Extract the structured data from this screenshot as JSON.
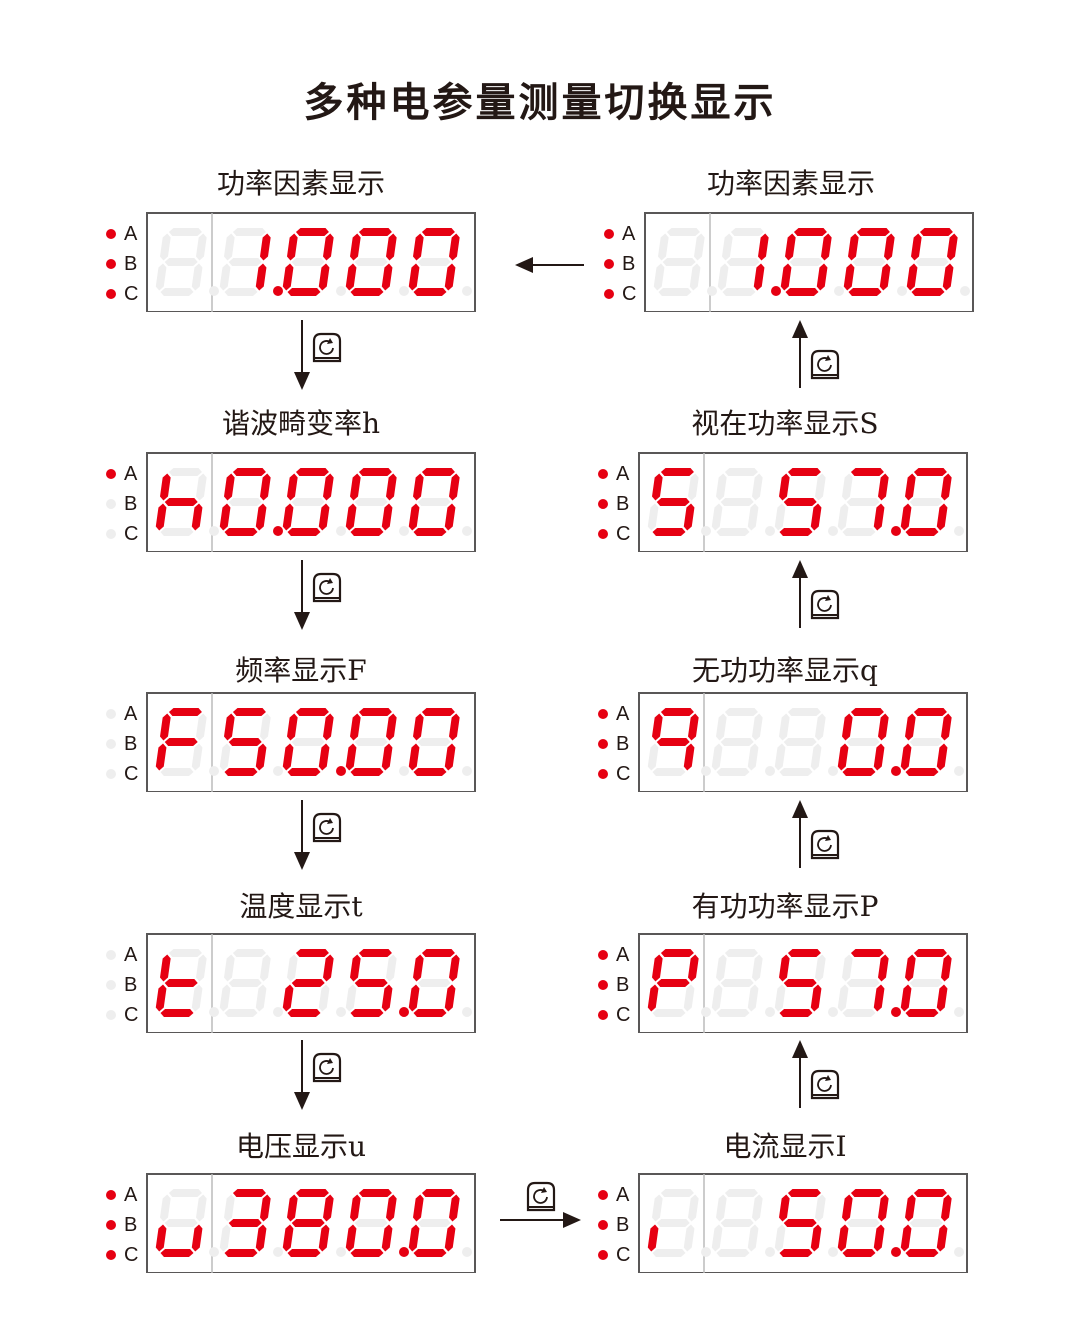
{
  "title": "多种电参量测量切换显示",
  "colors": {
    "segment_on": "#e60012",
    "segment_off": "#eeeeee",
    "led_on": "#e60012",
    "led_off": "#eeeeee"
  },
  "led_labels": [
    "A",
    "B",
    "C"
  ],
  "key_icon": "cycle-key-icon",
  "displays": [
    {
      "id": "pf-left",
      "label": "功率因素显示",
      "digits": [
        " ",
        "1.",
        "0",
        "0",
        "0"
      ],
      "leds": [
        true,
        true,
        true
      ]
    },
    {
      "id": "harmonic",
      "label": "谐波畸变率h",
      "digits": [
        "h",
        "0.",
        "0",
        "0",
        "0"
      ],
      "leds": [
        true,
        false,
        false
      ]
    },
    {
      "id": "frequency",
      "label": "频率显示F",
      "digits": [
        "F",
        "5",
        "0.",
        "0",
        "0"
      ],
      "leds": [
        false,
        false,
        false
      ]
    },
    {
      "id": "temperature",
      "label": "温度显示t",
      "digits": [
        "t",
        " ",
        "2",
        "5.",
        "0"
      ],
      "leds": [
        false,
        false,
        false
      ]
    },
    {
      "id": "voltage",
      "label": "电压显示u",
      "digits": [
        "u",
        "3",
        "8",
        "0.",
        "0"
      ],
      "leds": [
        true,
        true,
        true
      ]
    },
    {
      "id": "pf-right",
      "label": "功率因素显示",
      "digits": [
        " ",
        "1.",
        "0",
        "0",
        "0"
      ],
      "leds": [
        true,
        true,
        true
      ]
    },
    {
      "id": "apparent",
      "label": "视在功率显示S",
      "digits": [
        "5",
        " ",
        "5",
        "7.",
        "0"
      ],
      "leds": [
        true,
        true,
        true
      ]
    },
    {
      "id": "reactive",
      "label": "无功功率显示q",
      "digits": [
        "q",
        " ",
        " ",
        "0.",
        "0"
      ],
      "leds": [
        true,
        true,
        true
      ]
    },
    {
      "id": "active",
      "label": "有功功率显示P",
      "digits": [
        "P",
        " ",
        "5",
        "7.",
        "0"
      ],
      "leds": [
        true,
        true,
        true
      ]
    },
    {
      "id": "current",
      "label": "电流显示I",
      "digits": [
        "I",
        " ",
        "5",
        "0.",
        "0"
      ],
      "leds": [
        true,
        true,
        true
      ]
    }
  ]
}
